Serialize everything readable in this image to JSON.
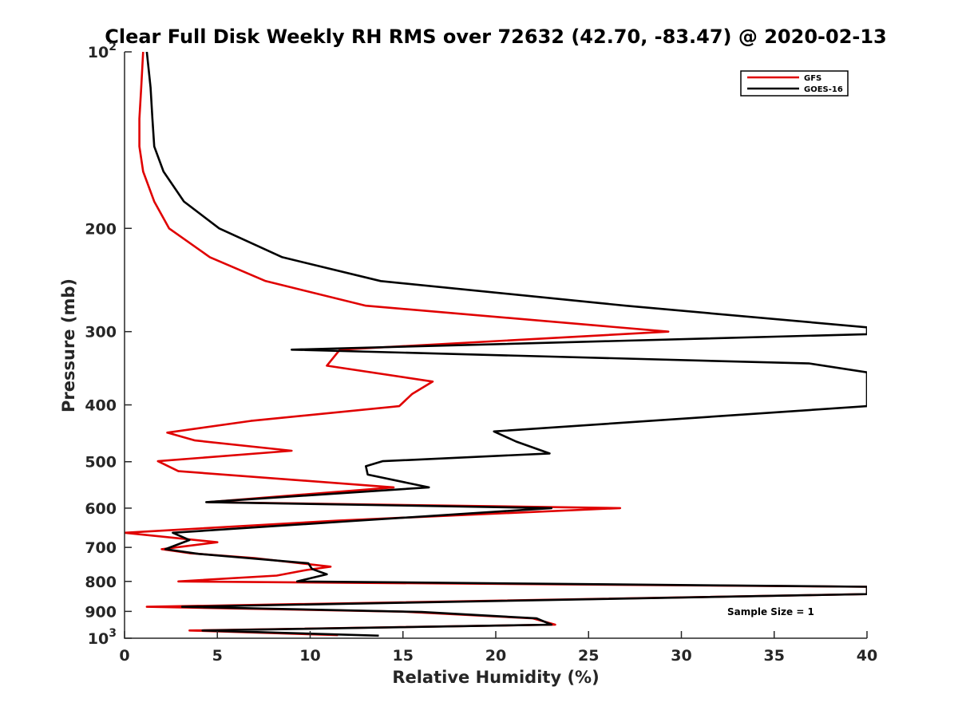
{
  "chart_data": {
    "type": "line",
    "title": "Clear Full Disk Weekly RH RMS over 72632 (42.70, -83.47) @ 2020-02-13",
    "xlabel": "Relative Humidity (%)",
    "ylabel": "Pressure (mb)",
    "xlim": [
      0,
      40
    ],
    "ylim": [
      100,
      1000
    ],
    "y_scale": "log",
    "y_reversed": true,
    "x_ticks": [
      0,
      5,
      10,
      15,
      20,
      25,
      30,
      35,
      40
    ],
    "y_ticks": [
      {
        "value": 100,
        "label": "10",
        "sup": "2"
      },
      {
        "value": 200,
        "label": "200"
      },
      {
        "value": 300,
        "label": "300"
      },
      {
        "value": 400,
        "label": "400"
      },
      {
        "value": 500,
        "label": "500"
      },
      {
        "value": 600,
        "label": "600"
      },
      {
        "value": 700,
        "label": "700"
      },
      {
        "value": 800,
        "label": "800"
      },
      {
        "value": 900,
        "label": "900"
      },
      {
        "value": 1000,
        "label": "10",
        "sup": "3"
      }
    ],
    "grid": false,
    "legend_position": "top-right",
    "annotation": "Sample Size = 1",
    "series": [
      {
        "name": "GFS",
        "color": "#e00000",
        "points": [
          [
            1.0,
            100
          ],
          [
            0.9,
            115
          ],
          [
            0.8,
            130
          ],
          [
            0.8,
            145
          ],
          [
            1.0,
            160
          ],
          [
            1.6,
            180
          ],
          [
            2.4,
            200
          ],
          [
            4.6,
            224
          ],
          [
            7.6,
            246
          ],
          [
            13.0,
            271
          ],
          [
            29.3,
            300
          ],
          [
            11.6,
            322
          ],
          [
            10.9,
            343
          ],
          [
            16.6,
            365
          ],
          [
            15.5,
            383
          ],
          [
            14.8,
            402
          ],
          [
            6.8,
            426
          ],
          [
            2.3,
            446
          ],
          [
            3.8,
            460
          ],
          [
            9.0,
            479
          ],
          [
            1.8,
            499
          ],
          [
            2.9,
            519
          ],
          [
            14.5,
            553
          ],
          [
            4.5,
            586
          ],
          [
            26.7,
            600
          ],
          [
            11.5,
            630
          ],
          [
            0.0,
            661
          ],
          [
            5.0,
            686
          ],
          [
            2.0,
            705
          ],
          [
            3.5,
            716
          ],
          [
            7.0,
            730
          ],
          [
            11.1,
            755
          ],
          [
            9.8,
            765
          ],
          [
            8.2,
            782
          ],
          [
            2.9,
            800
          ],
          [
            40.0,
            817
          ],
          [
            40.0,
            830
          ],
          [
            40.0,
            841
          ],
          [
            1.2,
            884
          ],
          [
            15.0,
            901
          ],
          [
            22.0,
            925
          ],
          [
            23.2,
            948
          ],
          [
            3.5,
            970
          ],
          [
            11.5,
            988
          ]
        ]
      },
      {
        "name": "GOES-16",
        "color": "#000000",
        "points": [
          [
            1.2,
            100
          ],
          [
            1.4,
            115
          ],
          [
            1.5,
            130
          ],
          [
            1.6,
            145
          ],
          [
            2.1,
            160
          ],
          [
            3.2,
            180
          ],
          [
            5.1,
            200
          ],
          [
            8.5,
            224
          ],
          [
            13.8,
            246
          ],
          [
            27.0,
            271
          ],
          [
            40.0,
            295
          ],
          [
            40.0,
            303
          ],
          [
            9.0,
            322
          ],
          [
            36.9,
            340
          ],
          [
            40.0,
            352
          ],
          [
            40.0,
            402
          ],
          [
            19.9,
            444
          ],
          [
            21.1,
            462
          ],
          [
            22.9,
            484
          ],
          [
            13.9,
            499
          ],
          [
            13.0,
            509
          ],
          [
            13.1,
            526
          ],
          [
            16.4,
            553
          ],
          [
            4.4,
            586
          ],
          [
            23.0,
            600
          ],
          [
            12.0,
            632
          ],
          [
            2.6,
            661
          ],
          [
            3.5,
            680
          ],
          [
            2.2,
            705
          ],
          [
            4.0,
            718
          ],
          [
            9.9,
            745
          ],
          [
            10.1,
            762
          ],
          [
            10.9,
            778
          ],
          [
            9.3,
            800
          ],
          [
            40.0,
            817
          ],
          [
            40.0,
            830
          ],
          [
            40.0,
            841
          ],
          [
            3.1,
            884
          ],
          [
            16.0,
            902
          ],
          [
            22.2,
            925
          ],
          [
            23.0,
            948
          ],
          [
            4.2,
            970
          ],
          [
            13.7,
            990
          ]
        ]
      }
    ]
  }
}
